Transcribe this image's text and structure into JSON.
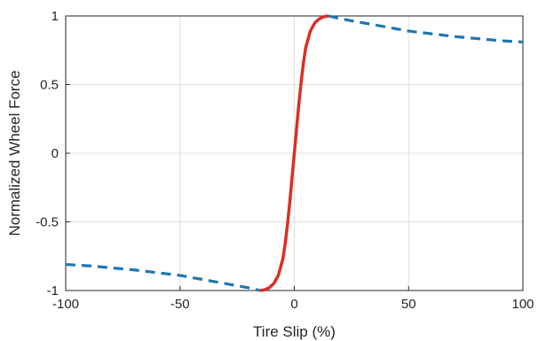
{
  "chart_data": {
    "type": "line",
    "title": "",
    "xlabel": "Tire Slip (%)",
    "ylabel": "Normalized Wheel Force",
    "xlim": [
      -100,
      100
    ],
    "ylim": [
      -1,
      1
    ],
    "grid": true,
    "x_ticks": [
      -100,
      -50,
      0,
      50,
      100
    ],
    "x_tick_labels": [
      "-100",
      "-50",
      "0",
      "50",
      "100"
    ],
    "y_ticks": [
      -1,
      -0.5,
      0,
      0.5,
      1
    ],
    "y_tick_labels": [
      "-1",
      "-0.5",
      "0",
      "0.5",
      "1"
    ],
    "series": [
      {
        "style": "solid",
        "color": "#d93025",
        "x": [
          -15,
          -13,
          -11,
          -9,
          -7,
          -5,
          -4,
          -3,
          -2,
          -1,
          0,
          1,
          2,
          3,
          4,
          5,
          7,
          9,
          11,
          13,
          15
        ],
        "y": [
          -1.0,
          -0.995,
          -0.98,
          -0.95,
          -0.89,
          -0.77,
          -0.66,
          -0.52,
          -0.36,
          -0.18,
          0,
          0.18,
          0.36,
          0.52,
          0.66,
          0.77,
          0.89,
          0.95,
          0.98,
          0.995,
          1.0
        ]
      },
      {
        "style": "dashed",
        "color": "#1f77b4",
        "x": [
          15,
          20,
          30,
          40,
          50,
          60,
          70,
          80,
          90,
          100
        ],
        "y": [
          1.0,
          0.98,
          0.95,
          0.92,
          0.89,
          0.87,
          0.85,
          0.835,
          0.82,
          0.81
        ]
      },
      {
        "style": "dashed",
        "color": "#1f77b4",
        "x": [
          -100,
          -90,
          -80,
          -70,
          -60,
          -50,
          -40,
          -30,
          -20,
          -15
        ],
        "y": [
          -0.81,
          -0.82,
          -0.835,
          -0.85,
          -0.87,
          -0.89,
          -0.92,
          -0.95,
          -0.98,
          -1.0
        ]
      }
    ]
  }
}
